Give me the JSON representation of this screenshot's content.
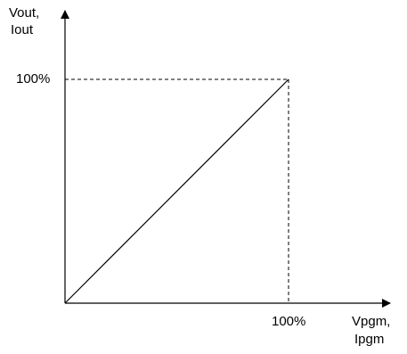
{
  "diagram": {
    "y_axis_label_line1": "Vout,",
    "y_axis_label_line2": "Iout",
    "x_axis_label_line1": "Vpgm,",
    "x_axis_label_line2": "Ipgm",
    "y_tick_label": "100%",
    "x_tick_label": "100%",
    "line_color": "#000000"
  }
}
